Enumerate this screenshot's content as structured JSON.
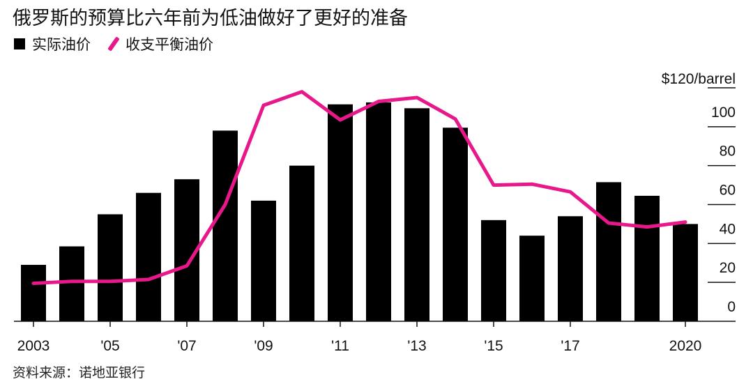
{
  "title": "俄罗斯的预算比六年前为低油做好了更好的准备",
  "source": "资料来源：诺地亚银行",
  "colors": {
    "bar": "#000000",
    "line": "#e8188a"
  },
  "chart_data": {
    "type": "bar",
    "title": "俄罗斯的预算比六年前为低油做好了更好的准备",
    "x": [
      2003,
      2004,
      2005,
      2006,
      2007,
      2008,
      2009,
      2010,
      2011,
      2012,
      2013,
      2014,
      2015,
      2016,
      2017,
      2018,
      2019,
      2020
    ],
    "x_tick_labels": [
      {
        "year": 2003,
        "label": "2003"
      },
      {
        "year": 2005,
        "label": "'05"
      },
      {
        "year": 2007,
        "label": "'07"
      },
      {
        "year": 2009,
        "label": "'09"
      },
      {
        "year": 2011,
        "label": "'11"
      },
      {
        "year": 2013,
        "label": "'13"
      },
      {
        "year": 2015,
        "label": "'15"
      },
      {
        "year": 2017,
        "label": "'17"
      },
      {
        "year": 2020,
        "label": "2020"
      }
    ],
    "y_ticks": [
      {
        "value": 0,
        "label": "0"
      },
      {
        "value": 20,
        "label": "20"
      },
      {
        "value": 40,
        "label": "40"
      },
      {
        "value": 60,
        "label": "60"
      },
      {
        "value": 80,
        "label": "80"
      },
      {
        "value": 100,
        "label": "100"
      },
      {
        "value": 120,
        "label": "$120/barrel"
      }
    ],
    "ylim": [
      0,
      120
    ],
    "ylabel": "$/barrel",
    "legend_position": "top-left",
    "series": [
      {
        "name": "实际油价",
        "type": "bar",
        "values": [
          29,
          38.5,
          55,
          66,
          73,
          98,
          62,
          80,
          111.5,
          112.5,
          109.5,
          99.5,
          52,
          44,
          54,
          71.5,
          64.5,
          50
        ]
      },
      {
        "name": "收支平衡油价",
        "type": "line",
        "values": [
          19.5,
          20.5,
          20.5,
          21.5,
          28.5,
          60,
          111,
          118,
          103.5,
          113,
          115,
          104,
          70,
          70.5,
          66.5,
          50.5,
          48.5,
          51
        ]
      }
    ]
  }
}
